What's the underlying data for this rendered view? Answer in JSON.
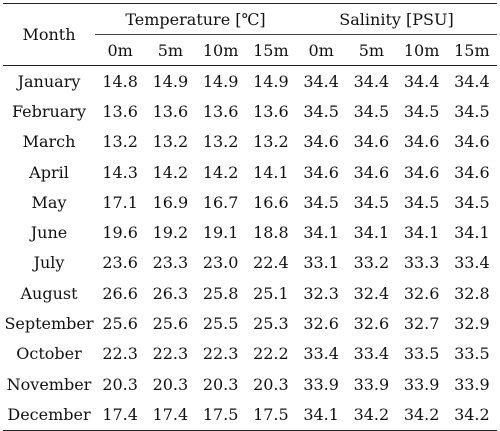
{
  "table": {
    "month_header": "Month",
    "groups": [
      {
        "label": "Temperature [℃]"
      },
      {
        "label": "Salinity [PSU]"
      }
    ],
    "depths": [
      "0m",
      "5m",
      "10m",
      "15m",
      "0m",
      "5m",
      "10m",
      "15m"
    ],
    "rows": [
      {
        "month": "January",
        "values": [
          "14.8",
          "14.9",
          "14.9",
          "14.9",
          "34.4",
          "34.4",
          "34.4",
          "34.4"
        ]
      },
      {
        "month": "February",
        "values": [
          "13.6",
          "13.6",
          "13.6",
          "13.6",
          "34.5",
          "34.5",
          "34.5",
          "34.5"
        ]
      },
      {
        "month": "March",
        "values": [
          "13.2",
          "13.2",
          "13.2",
          "13.2",
          "34.6",
          "34.6",
          "34.6",
          "34.6"
        ]
      },
      {
        "month": "April",
        "values": [
          "14.3",
          "14.2",
          "14.2",
          "14.1",
          "34.6",
          "34.6",
          "34.6",
          "34.6"
        ]
      },
      {
        "month": "May",
        "values": [
          "17.1",
          "16.9",
          "16.7",
          "16.6",
          "34.5",
          "34.5",
          "34.5",
          "34.5"
        ]
      },
      {
        "month": "June",
        "values": [
          "19.6",
          "19.2",
          "19.1",
          "18.8",
          "34.1",
          "34.1",
          "34.1",
          "34.1"
        ]
      },
      {
        "month": "July",
        "values": [
          "23.6",
          "23.3",
          "23.0",
          "22.4",
          "33.1",
          "33.2",
          "33.3",
          "33.4"
        ]
      },
      {
        "month": "August",
        "values": [
          "26.6",
          "26.3",
          "25.8",
          "25.1",
          "32.3",
          "32.4",
          "32.6",
          "32.8"
        ]
      },
      {
        "month": "September",
        "values": [
          "25.6",
          "25.6",
          "25.5",
          "25.3",
          "32.6",
          "32.6",
          "32.7",
          "32.9"
        ]
      },
      {
        "month": "October",
        "values": [
          "22.3",
          "22.3",
          "22.3",
          "22.2",
          "33.4",
          "33.4",
          "33.5",
          "33.5"
        ]
      },
      {
        "month": "November",
        "values": [
          "20.3",
          "20.3",
          "20.3",
          "20.3",
          "33.9",
          "33.9",
          "33.9",
          "33.9"
        ]
      },
      {
        "month": "December",
        "values": [
          "17.4",
          "17.4",
          "17.5",
          "17.5",
          "34.1",
          "34.2",
          "34.2",
          "34.2"
        ]
      }
    ]
  }
}
